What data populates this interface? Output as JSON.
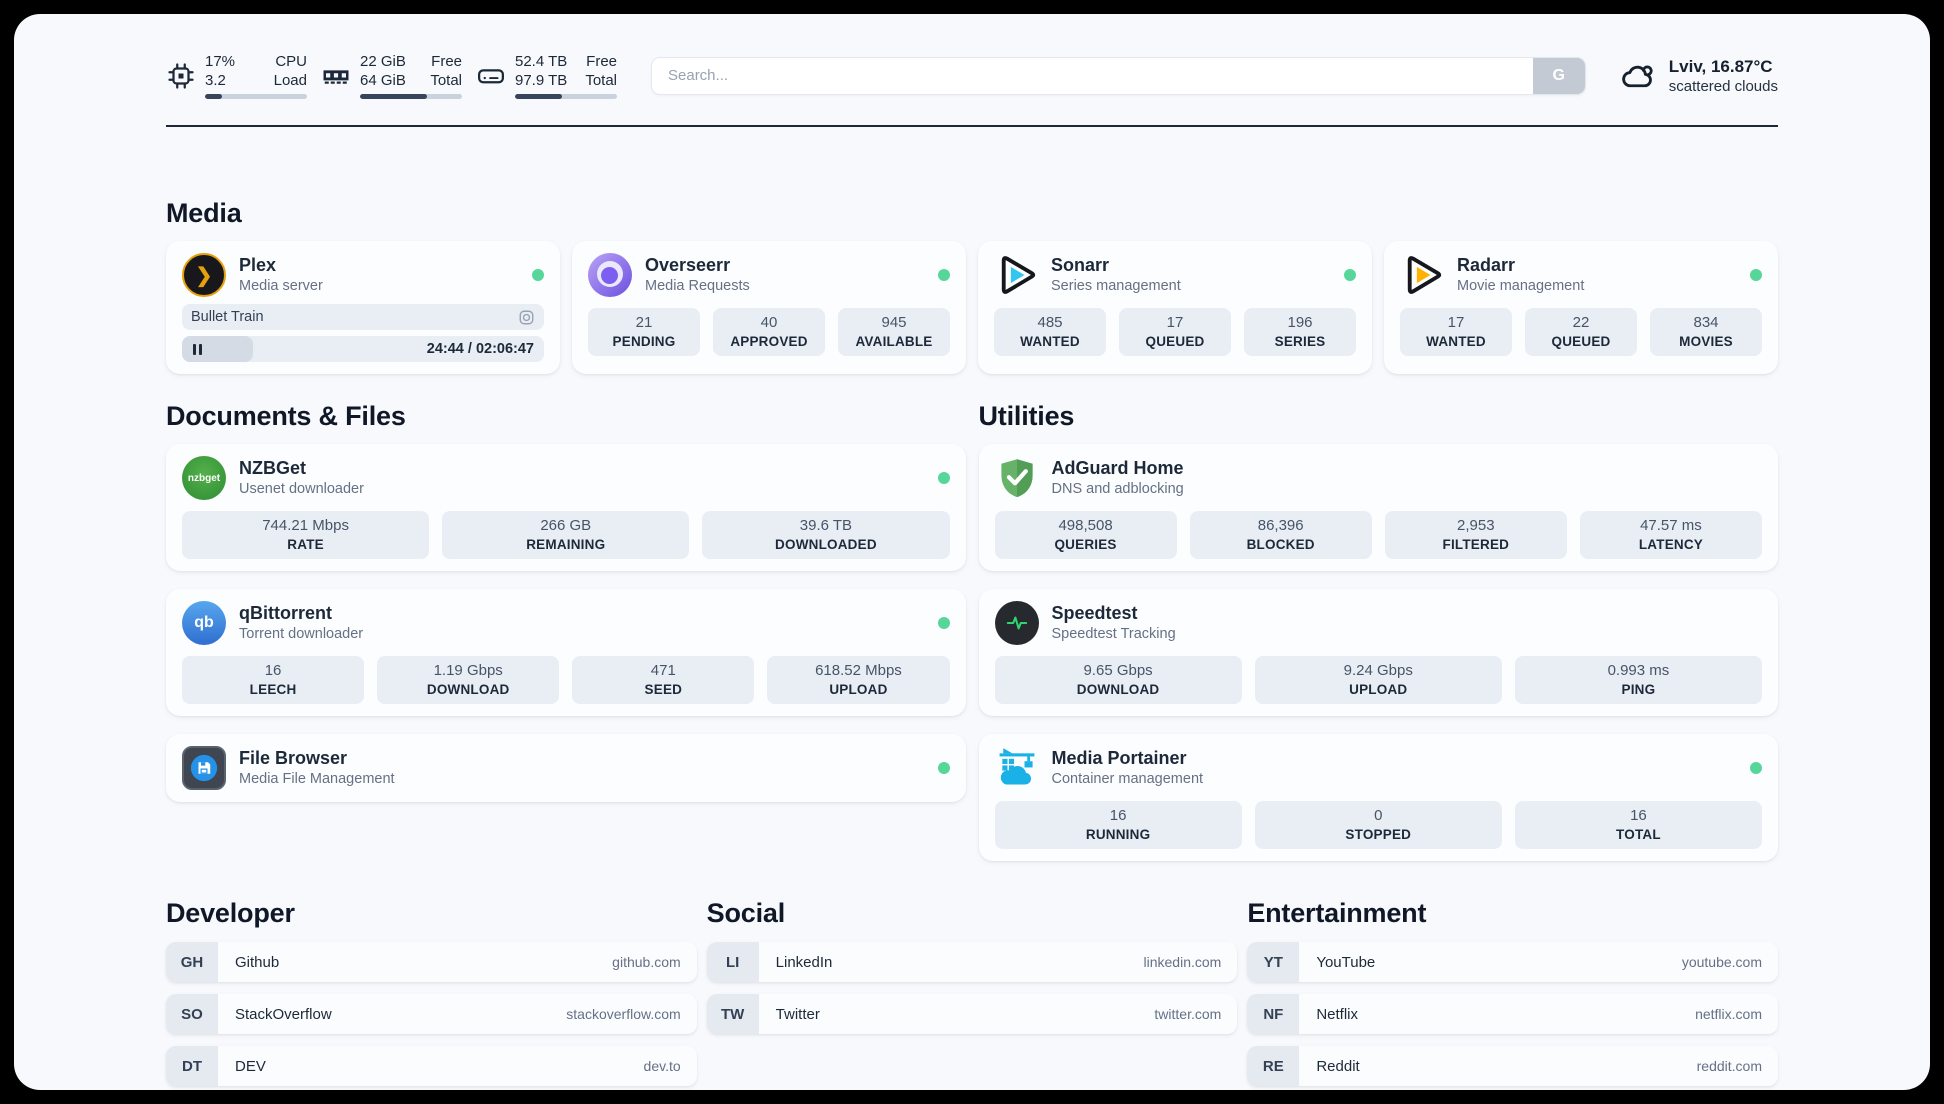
{
  "topbar": {
    "resources": [
      {
        "value_top": "17%",
        "value_bottom": "3.2",
        "label_top": "CPU",
        "label_bottom": "Load",
        "progress": 17
      },
      {
        "value_top": "22 GiB",
        "value_bottom": "64 GiB",
        "label_top": "Free",
        "label_bottom": "Total",
        "progress": 66
      },
      {
        "value_top": "52.4 TB",
        "value_bottom": "97.9 TB",
        "label_top": "Free",
        "label_bottom": "Total",
        "progress": 46
      }
    ],
    "search": {
      "placeholder": "Search...",
      "button": "G"
    },
    "weather": {
      "location": "Lviv, 16.87°C",
      "condition": "scattered clouds"
    }
  },
  "media": {
    "title": "Media",
    "plex": {
      "name": "Plex",
      "description": "Media server",
      "now_playing": "Bullet Train",
      "time": "24:44 / 02:06:47",
      "progress": 19.5
    },
    "overseerr": {
      "name": "Overseerr",
      "description": "Media Requests",
      "stats": [
        {
          "value": "21",
          "label": "PENDING"
        },
        {
          "value": "40",
          "label": "APPROVED"
        },
        {
          "value": "945",
          "label": "AVAILABLE"
        }
      ]
    },
    "sonarr": {
      "name": "Sonarr",
      "description": "Series management",
      "stats": [
        {
          "value": "485",
          "label": "WANTED"
        },
        {
          "value": "17",
          "label": "QUEUED"
        },
        {
          "value": "196",
          "label": "SERIES"
        }
      ]
    },
    "radarr": {
      "name": "Radarr",
      "description": "Movie management",
      "stats": [
        {
          "value": "17",
          "label": "WANTED"
        },
        {
          "value": "22",
          "label": "QUEUED"
        },
        {
          "value": "834",
          "label": "MOVIES"
        }
      ]
    }
  },
  "documents": {
    "title": "Documents & Files",
    "nzbget": {
      "name": "NZBGet",
      "description": "Usenet downloader",
      "icon_label": "nzbget",
      "stats": [
        {
          "value": "744.21 Mbps",
          "label": "RATE"
        },
        {
          "value": "266 GB",
          "label": "REMAINING"
        },
        {
          "value": "39.6 TB",
          "label": "DOWNLOADED"
        }
      ]
    },
    "qbittorrent": {
      "name": "qBittorrent",
      "description": "Torrent downloader",
      "icon_label": "qb",
      "stats": [
        {
          "value": "16",
          "label": "LEECH"
        },
        {
          "value": "1.19 Gbps",
          "label": "DOWNLOAD"
        },
        {
          "value": "471",
          "label": "SEED"
        },
        {
          "value": "618.52 Mbps",
          "label": "UPLOAD"
        }
      ]
    },
    "filebrowser": {
      "name": "File Browser",
      "description": "Media File Management"
    }
  },
  "utilities": {
    "title": "Utilities",
    "adguard": {
      "name": "AdGuard Home",
      "description": "DNS and adblocking",
      "stats": [
        {
          "value": "498,508",
          "label": "QUERIES"
        },
        {
          "value": "86,396",
          "label": "BLOCKED"
        },
        {
          "value": "2,953",
          "label": "FILTERED"
        },
        {
          "value": "47.57 ms",
          "label": "LATENCY"
        }
      ]
    },
    "speedtest": {
      "name": "Speedtest",
      "description": "Speedtest Tracking",
      "stats": [
        {
          "value": "9.65 Gbps",
          "label": "DOWNLOAD"
        },
        {
          "value": "9.24 Gbps",
          "label": "UPLOAD"
        },
        {
          "value": "0.993 ms",
          "label": "PING"
        }
      ]
    },
    "portainer": {
      "name": "Media Portainer",
      "description": "Container management",
      "stats": [
        {
          "value": "16",
          "label": "RUNNING"
        },
        {
          "value": "0",
          "label": "STOPPED"
        },
        {
          "value": "16",
          "label": "TOTAL"
        }
      ]
    }
  },
  "bookmarks": {
    "developer": {
      "title": "Developer",
      "items": [
        {
          "abbr": "GH",
          "name": "Github",
          "url": "github.com"
        },
        {
          "abbr": "SO",
          "name": "StackOverflow",
          "url": "stackoverflow.com"
        },
        {
          "abbr": "DT",
          "name": "DEV",
          "url": "dev.to"
        }
      ]
    },
    "social": {
      "title": "Social",
      "items": [
        {
          "abbr": "LI",
          "name": "LinkedIn",
          "url": "linkedin.com"
        },
        {
          "abbr": "TW",
          "name": "Twitter",
          "url": "twitter.com"
        }
      ]
    },
    "entertainment": {
      "title": "Entertainment",
      "items": [
        {
          "abbr": "YT",
          "name": "YouTube",
          "url": "youtube.com"
        },
        {
          "abbr": "NF",
          "name": "Netflix",
          "url": "netflix.com"
        },
        {
          "abbr": "RE",
          "name": "Reddit",
          "url": "reddit.com"
        }
      ]
    }
  }
}
